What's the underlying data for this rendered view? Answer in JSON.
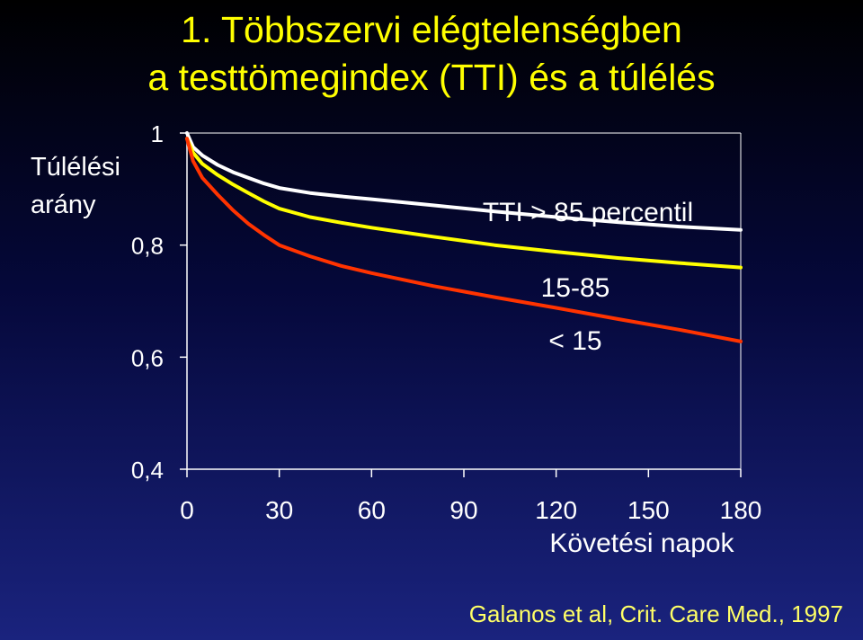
{
  "title_line1": "1. Többszervi elégtelenségben",
  "title_line2": "a testtömegindex (TTI) és a túlélés",
  "citation": "Galanos et al, Crit. Care Med., 1997",
  "colors": {
    "title": "#ffff00",
    "citation": "#ffff66",
    "axis": "#ffffff",
    "series_high": "#ffffff",
    "series_mid": "#ffff00",
    "series_low": "#ff3300"
  },
  "chart_data": {
    "type": "line",
    "title": "",
    "xlabel": "Követési napok",
    "ylabel_lines": [
      "Túlélési",
      "arány"
    ],
    "xlim": [
      0,
      180
    ],
    "ylim": [
      0.4,
      1.0
    ],
    "x_ticks": [
      0,
      30,
      60,
      90,
      120,
      150,
      180
    ],
    "x_tick_labels": [
      "0",
      "30",
      "60",
      "90",
      "120",
      "150",
      "180"
    ],
    "y_ticks": [
      0.4,
      0.6,
      0.8,
      1.0
    ],
    "y_tick_labels": [
      "0,4",
      "0,6",
      "0,8",
      "1"
    ],
    "grid": false,
    "series": [
      {
        "name": "TTI > 85 percentil",
        "color": "#ffffff",
        "x": [
          0,
          2,
          5,
          10,
          15,
          20,
          25,
          30,
          40,
          50,
          60,
          80,
          100,
          120,
          140,
          160,
          180
        ],
        "y": [
          1.0,
          0.975,
          0.96,
          0.943,
          0.93,
          0.92,
          0.91,
          0.902,
          0.893,
          0.887,
          0.882,
          0.871,
          0.86,
          0.85,
          0.841,
          0.833,
          0.827
        ]
      },
      {
        "name": "15-85",
        "color": "#ffff00",
        "x": [
          0,
          2,
          5,
          10,
          15,
          20,
          25,
          30,
          40,
          50,
          60,
          80,
          100,
          120,
          140,
          160,
          180
        ],
        "y": [
          0.99,
          0.965,
          0.945,
          0.925,
          0.908,
          0.893,
          0.878,
          0.865,
          0.85,
          0.84,
          0.831,
          0.815,
          0.8,
          0.788,
          0.777,
          0.768,
          0.76
        ]
      },
      {
        "name": "< 15",
        "color": "#ff3300",
        "x": [
          0,
          2,
          5,
          10,
          15,
          20,
          25,
          30,
          40,
          50,
          60,
          80,
          100,
          120,
          140,
          160,
          180
        ],
        "y": [
          0.99,
          0.95,
          0.92,
          0.89,
          0.862,
          0.838,
          0.818,
          0.8,
          0.78,
          0.763,
          0.75,
          0.727,
          0.707,
          0.688,
          0.668,
          0.649,
          0.628
        ]
      }
    ]
  }
}
